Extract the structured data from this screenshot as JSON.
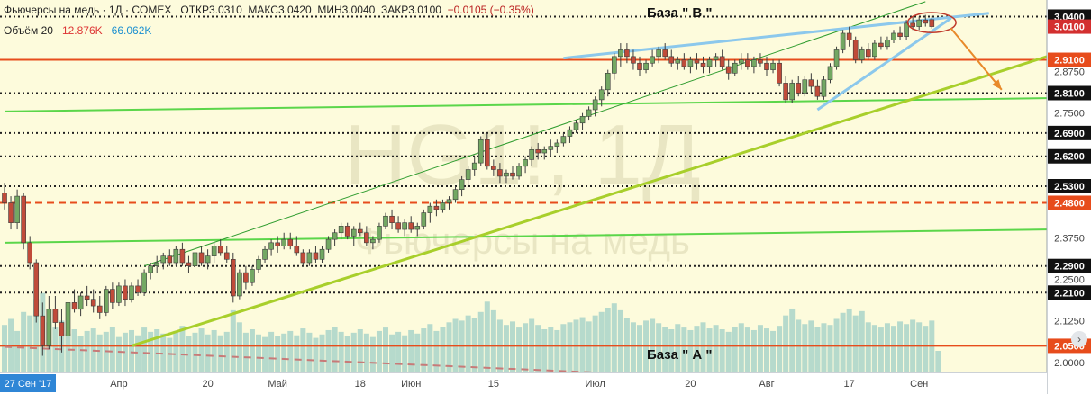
{
  "header": {
    "title": "Фьючерсы на медь · 1Д · COMEX",
    "open": "ОТКР3.0310",
    "high": "МАКС3.0420",
    "low": "МИН3.0040",
    "close": "ЗАКР3.0100",
    "change": "−0.0105 (−0.35%)"
  },
  "volume": {
    "label": "Объём 20",
    "value1": "12.876K",
    "value2": "66.062K"
  },
  "watermark": {
    "symbol": "HG1!, 1Д",
    "name": "Фьючерсы на медь"
  },
  "annotations": {
    "base_b": "База \" В \"",
    "base_a": "База \" А \""
  },
  "colors": {
    "background": "#fdfbdc",
    "up_candle": "#73a863",
    "down_candle": "#c04b3a",
    "volume": "#a9d3c9",
    "level_red": "#e74c1c",
    "trend_green": "#5bd64a",
    "trend_lime": "#a8cf2b",
    "trend_blue": "#8cc8ec",
    "dotted": "#222222"
  },
  "chart_data": {
    "type": "candlestick",
    "yaxis": {
      "min": 1.97,
      "max": 3.09,
      "ticks": [
        "3.0400",
        "3.0100",
        "2.9100",
        "2.8750",
        "2.8100",
        "2.7500",
        "2.6900",
        "2.6200",
        "2.5300",
        "2.4800",
        "2.3750",
        "2.2900",
        "2.2500",
        "2.2100",
        "2.1250",
        "2.0500",
        "2.0000"
      ],
      "highlighted": [
        "3.0400",
        "3.0100",
        "2.9100",
        "2.8100",
        "2.6900",
        "2.6200",
        "2.5300",
        "2.4800",
        "2.2900",
        "2.2100",
        "2.0500"
      ]
    },
    "xaxis": {
      "labels": [
        "27 Сен '17",
        "Апр",
        "20",
        "Май",
        "18",
        "Июн",
        "15",
        "Июл",
        "20",
        "Авг",
        "17",
        "Сен"
      ],
      "highlighted_label": "27 Сен '17"
    },
    "levels": [
      {
        "price": 3.04,
        "style": "dotted",
        "color": "#222222"
      },
      {
        "price": 2.91,
        "style": "solid",
        "color": "#e74c1c"
      },
      {
        "price": 2.81,
        "style": "dotted",
        "color": "#222222"
      },
      {
        "price": 2.69,
        "style": "dotted",
        "color": "#222222"
      },
      {
        "price": 2.62,
        "style": "dotted",
        "color": "#222222"
      },
      {
        "price": 2.53,
        "style": "dotted",
        "color": "#222222"
      },
      {
        "price": 2.48,
        "style": "dashed",
        "color": "#e74c1c"
      },
      {
        "price": 2.29,
        "style": "dotted",
        "color": "#222222"
      },
      {
        "price": 2.21,
        "style": "dotted",
        "color": "#222222"
      },
      {
        "price": 2.05,
        "style": "solid",
        "color": "#e74c1c"
      }
    ],
    "trendlines": [
      {
        "points": [
          [
            0,
            2.755
          ],
          [
            165,
            2.795
          ]
        ],
        "color": "#5bd64a",
        "width": 2
      },
      {
        "points": [
          [
            0,
            2.36
          ],
          [
            165,
            2.4
          ]
        ],
        "color": "#5bd64a",
        "width": 2
      },
      {
        "points": [
          [
            20,
            2.05
          ],
          [
            165,
            2.925
          ]
        ],
        "color": "#a8cf2b",
        "width": 3
      },
      {
        "points": [
          [
            22,
            2.29
          ],
          [
            145,
            3.085
          ]
        ],
        "color": "#2e9c2e",
        "width": 1
      },
      {
        "points": [
          [
            88,
            2.915
          ],
          [
            155,
            3.05
          ]
        ],
        "color": "#8cc8ec",
        "width": 3
      },
      {
        "points": [
          [
            128,
            2.76
          ],
          [
            149,
            3.035
          ]
        ],
        "color": "#8cc8ec",
        "width": 3
      },
      {
        "points": [
          [
            0,
            2.047
          ],
          [
            93,
            1.97
          ]
        ],
        "color": "#c87a78",
        "width": 2,
        "dash": true
      }
    ],
    "arrow": {
      "from": [
        149,
        3.005
      ],
      "to": [
        157,
        2.82
      ],
      "color": "#e88a2a"
    },
    "highlight_ellipse": {
      "center": [
        146,
        3.022
      ],
      "rx": 3.8,
      "ry": 0.03,
      "color": "#c0392b"
    },
    "candles": [
      {
        "o": 2.51,
        "h": 2.54,
        "l": 2.46,
        "c": 2.48
      },
      {
        "o": 2.48,
        "h": 2.5,
        "l": 2.4,
        "c": 2.42
      },
      {
        "o": 2.42,
        "h": 2.52,
        "l": 2.4,
        "c": 2.5
      },
      {
        "o": 2.5,
        "h": 2.51,
        "l": 2.34,
        "c": 2.36
      },
      {
        "o": 2.36,
        "h": 2.38,
        "l": 2.28,
        "c": 2.3
      },
      {
        "o": 2.3,
        "h": 2.31,
        "l": 2.12,
        "c": 2.14
      },
      {
        "o": 2.14,
        "h": 2.18,
        "l": 2.02,
        "c": 2.05
      },
      {
        "o": 2.05,
        "h": 2.2,
        "l": 2.04,
        "c": 2.16
      },
      {
        "o": 2.16,
        "h": 2.2,
        "l": 2.1,
        "c": 2.12
      },
      {
        "o": 2.12,
        "h": 2.16,
        "l": 2.03,
        "c": 2.08
      },
      {
        "o": 2.08,
        "h": 2.2,
        "l": 2.06,
        "c": 2.18
      },
      {
        "o": 2.18,
        "h": 2.22,
        "l": 2.15,
        "c": 2.16
      },
      {
        "o": 2.16,
        "h": 2.21,
        "l": 2.14,
        "c": 2.2
      },
      {
        "o": 2.2,
        "h": 2.23,
        "l": 2.17,
        "c": 2.19
      },
      {
        "o": 2.19,
        "h": 2.22,
        "l": 2.15,
        "c": 2.17
      },
      {
        "o": 2.17,
        "h": 2.2,
        "l": 2.13,
        "c": 2.15
      },
      {
        "o": 2.15,
        "h": 2.23,
        "l": 2.14,
        "c": 2.22
      },
      {
        "o": 2.22,
        "h": 2.24,
        "l": 2.16,
        "c": 2.18
      },
      {
        "o": 2.18,
        "h": 2.24,
        "l": 2.17,
        "c": 2.23
      },
      {
        "o": 2.23,
        "h": 2.25,
        "l": 2.17,
        "c": 2.19
      },
      {
        "o": 2.19,
        "h": 2.24,
        "l": 2.18,
        "c": 2.23
      },
      {
        "o": 2.23,
        "h": 2.25,
        "l": 2.2,
        "c": 2.21
      },
      {
        "o": 2.21,
        "h": 2.28,
        "l": 2.2,
        "c": 2.27
      },
      {
        "o": 2.27,
        "h": 2.3,
        "l": 2.25,
        "c": 2.29
      },
      {
        "o": 2.29,
        "h": 2.32,
        "l": 2.27,
        "c": 2.3
      },
      {
        "o": 2.3,
        "h": 2.33,
        "l": 2.28,
        "c": 2.32
      },
      {
        "o": 2.32,
        "h": 2.34,
        "l": 2.29,
        "c": 2.3
      },
      {
        "o": 2.3,
        "h": 2.35,
        "l": 2.29,
        "c": 2.34
      },
      {
        "o": 2.34,
        "h": 2.36,
        "l": 2.29,
        "c": 2.3
      },
      {
        "o": 2.3,
        "h": 2.32,
        "l": 2.27,
        "c": 2.29
      },
      {
        "o": 2.29,
        "h": 2.34,
        "l": 2.28,
        "c": 2.33
      },
      {
        "o": 2.33,
        "h": 2.35,
        "l": 2.29,
        "c": 2.3
      },
      {
        "o": 2.3,
        "h": 2.34,
        "l": 2.28,
        "c": 2.32
      },
      {
        "o": 2.32,
        "h": 2.36,
        "l": 2.3,
        "c": 2.35
      },
      {
        "o": 2.35,
        "h": 2.37,
        "l": 2.32,
        "c": 2.33
      },
      {
        "o": 2.33,
        "h": 2.35,
        "l": 2.3,
        "c": 2.31
      },
      {
        "o": 2.31,
        "h": 2.33,
        "l": 2.18,
        "c": 2.2
      },
      {
        "o": 2.2,
        "h": 2.28,
        "l": 2.19,
        "c": 2.27
      },
      {
        "o": 2.27,
        "h": 2.29,
        "l": 2.22,
        "c": 2.24
      },
      {
        "o": 2.24,
        "h": 2.29,
        "l": 2.23,
        "c": 2.28
      },
      {
        "o": 2.28,
        "h": 2.32,
        "l": 2.27,
        "c": 2.31
      },
      {
        "o": 2.31,
        "h": 2.35,
        "l": 2.3,
        "c": 2.34
      },
      {
        "o": 2.34,
        "h": 2.37,
        "l": 2.32,
        "c": 2.36
      },
      {
        "o": 2.36,
        "h": 2.38,
        "l": 2.33,
        "c": 2.35
      },
      {
        "o": 2.35,
        "h": 2.39,
        "l": 2.34,
        "c": 2.37
      },
      {
        "o": 2.37,
        "h": 2.39,
        "l": 2.34,
        "c": 2.35
      },
      {
        "o": 2.35,
        "h": 2.38,
        "l": 2.32,
        "c": 2.33
      },
      {
        "o": 2.33,
        "h": 2.34,
        "l": 2.29,
        "c": 2.3
      },
      {
        "o": 2.3,
        "h": 2.34,
        "l": 2.29,
        "c": 2.33
      },
      {
        "o": 2.33,
        "h": 2.35,
        "l": 2.3,
        "c": 2.31
      },
      {
        "o": 2.31,
        "h": 2.35,
        "l": 2.3,
        "c": 2.34
      },
      {
        "o": 2.34,
        "h": 2.38,
        "l": 2.33,
        "c": 2.37
      },
      {
        "o": 2.37,
        "h": 2.4,
        "l": 2.35,
        "c": 2.39
      },
      {
        "o": 2.39,
        "h": 2.42,
        "l": 2.37,
        "c": 2.41
      },
      {
        "o": 2.41,
        "h": 2.42,
        "l": 2.37,
        "c": 2.38
      },
      {
        "o": 2.38,
        "h": 2.41,
        "l": 2.35,
        "c": 2.4
      },
      {
        "o": 2.4,
        "h": 2.42,
        "l": 2.38,
        "c": 2.39
      },
      {
        "o": 2.39,
        "h": 2.41,
        "l": 2.35,
        "c": 2.36
      },
      {
        "o": 2.36,
        "h": 2.38,
        "l": 2.34,
        "c": 2.37
      },
      {
        "o": 2.37,
        "h": 2.42,
        "l": 2.36,
        "c": 2.41
      },
      {
        "o": 2.41,
        "h": 2.45,
        "l": 2.4,
        "c": 2.44
      },
      {
        "o": 2.44,
        "h": 2.46,
        "l": 2.4,
        "c": 2.42
      },
      {
        "o": 2.42,
        "h": 2.44,
        "l": 2.39,
        "c": 2.4
      },
      {
        "o": 2.4,
        "h": 2.43,
        "l": 2.38,
        "c": 2.42
      },
      {
        "o": 2.42,
        "h": 2.44,
        "l": 2.39,
        "c": 2.4
      },
      {
        "o": 2.4,
        "h": 2.42,
        "l": 2.38,
        "c": 2.41
      },
      {
        "o": 2.41,
        "h": 2.46,
        "l": 2.4,
        "c": 2.45
      },
      {
        "o": 2.45,
        "h": 2.48,
        "l": 2.42,
        "c": 2.47
      },
      {
        "o": 2.47,
        "h": 2.49,
        "l": 2.44,
        "c": 2.46
      },
      {
        "o": 2.46,
        "h": 2.49,
        "l": 2.45,
        "c": 2.48
      },
      {
        "o": 2.48,
        "h": 2.5,
        "l": 2.46,
        "c": 2.49
      },
      {
        "o": 2.49,
        "h": 2.53,
        "l": 2.48,
        "c": 2.52
      },
      {
        "o": 2.52,
        "h": 2.56,
        "l": 2.5,
        "c": 2.55
      },
      {
        "o": 2.55,
        "h": 2.59,
        "l": 2.53,
        "c": 2.58
      },
      {
        "o": 2.58,
        "h": 2.62,
        "l": 2.56,
        "c": 2.6
      },
      {
        "o": 2.6,
        "h": 2.68,
        "l": 2.59,
        "c": 2.67
      },
      {
        "o": 2.67,
        "h": 2.69,
        "l": 2.58,
        "c": 2.59
      },
      {
        "o": 2.59,
        "h": 2.61,
        "l": 2.56,
        "c": 2.58
      },
      {
        "o": 2.58,
        "h": 2.6,
        "l": 2.54,
        "c": 2.56
      },
      {
        "o": 2.56,
        "h": 2.58,
        "l": 2.54,
        "c": 2.57
      },
      {
        "o": 2.57,
        "h": 2.59,
        "l": 2.55,
        "c": 2.56
      },
      {
        "o": 2.56,
        "h": 2.6,
        "l": 2.55,
        "c": 2.59
      },
      {
        "o": 2.59,
        "h": 2.62,
        "l": 2.57,
        "c": 2.61
      },
      {
        "o": 2.61,
        "h": 2.65,
        "l": 2.59,
        "c": 2.64
      },
      {
        "o": 2.64,
        "h": 2.66,
        "l": 2.61,
        "c": 2.63
      },
      {
        "o": 2.63,
        "h": 2.65,
        "l": 2.61,
        "c": 2.64
      },
      {
        "o": 2.64,
        "h": 2.67,
        "l": 2.62,
        "c": 2.65
      },
      {
        "o": 2.65,
        "h": 2.67,
        "l": 2.63,
        "c": 2.66
      },
      {
        "o": 2.66,
        "h": 2.69,
        "l": 2.65,
        "c": 2.68
      },
      {
        "o": 2.68,
        "h": 2.71,
        "l": 2.66,
        "c": 2.7
      },
      {
        "o": 2.7,
        "h": 2.73,
        "l": 2.69,
        "c": 2.72
      },
      {
        "o": 2.72,
        "h": 2.75,
        "l": 2.7,
        "c": 2.74
      },
      {
        "o": 2.74,
        "h": 2.77,
        "l": 2.73,
        "c": 2.76
      },
      {
        "o": 2.76,
        "h": 2.8,
        "l": 2.74,
        "c": 2.79
      },
      {
        "o": 2.79,
        "h": 2.83,
        "l": 2.77,
        "c": 2.82
      },
      {
        "o": 2.82,
        "h": 2.88,
        "l": 2.8,
        "c": 2.87
      },
      {
        "o": 2.87,
        "h": 2.93,
        "l": 2.85,
        "c": 2.92
      },
      {
        "o": 2.92,
        "h": 2.96,
        "l": 2.89,
        "c": 2.94
      },
      {
        "o": 2.94,
        "h": 2.96,
        "l": 2.9,
        "c": 2.92
      },
      {
        "o": 2.92,
        "h": 2.94,
        "l": 2.88,
        "c": 2.9
      },
      {
        "o": 2.9,
        "h": 2.92,
        "l": 2.86,
        "c": 2.88
      },
      {
        "o": 2.88,
        "h": 2.91,
        "l": 2.87,
        "c": 2.9
      },
      {
        "o": 2.9,
        "h": 2.94,
        "l": 2.89,
        "c": 2.92
      },
      {
        "o": 2.92,
        "h": 2.95,
        "l": 2.9,
        "c": 2.94
      },
      {
        "o": 2.94,
        "h": 2.96,
        "l": 2.91,
        "c": 2.92
      },
      {
        "o": 2.92,
        "h": 2.94,
        "l": 2.89,
        "c": 2.9
      },
      {
        "o": 2.9,
        "h": 2.92,
        "l": 2.88,
        "c": 2.91
      },
      {
        "o": 2.91,
        "h": 2.93,
        "l": 2.88,
        "c": 2.89
      },
      {
        "o": 2.89,
        "h": 2.92,
        "l": 2.87,
        "c": 2.91
      },
      {
        "o": 2.91,
        "h": 2.93,
        "l": 2.88,
        "c": 2.9
      },
      {
        "o": 2.9,
        "h": 2.92,
        "l": 2.87,
        "c": 2.89
      },
      {
        "o": 2.89,
        "h": 2.92,
        "l": 2.87,
        "c": 2.91
      },
      {
        "o": 2.91,
        "h": 2.93,
        "l": 2.89,
        "c": 2.92
      },
      {
        "o": 2.92,
        "h": 2.94,
        "l": 2.88,
        "c": 2.89
      },
      {
        "o": 2.89,
        "h": 2.91,
        "l": 2.85,
        "c": 2.87
      },
      {
        "o": 2.87,
        "h": 2.91,
        "l": 2.86,
        "c": 2.9
      },
      {
        "o": 2.9,
        "h": 2.93,
        "l": 2.88,
        "c": 2.91
      },
      {
        "o": 2.91,
        "h": 2.93,
        "l": 2.88,
        "c": 2.89
      },
      {
        "o": 2.89,
        "h": 2.92,
        "l": 2.87,
        "c": 2.91
      },
      {
        "o": 2.91,
        "h": 2.93,
        "l": 2.89,
        "c": 2.9
      },
      {
        "o": 2.9,
        "h": 2.92,
        "l": 2.86,
        "c": 2.88
      },
      {
        "o": 2.88,
        "h": 2.91,
        "l": 2.87,
        "c": 2.9
      },
      {
        "o": 2.9,
        "h": 2.91,
        "l": 2.83,
        "c": 2.84
      },
      {
        "o": 2.84,
        "h": 2.86,
        "l": 2.78,
        "c": 2.79
      },
      {
        "o": 2.79,
        "h": 2.85,
        "l": 2.78,
        "c": 2.84
      },
      {
        "o": 2.84,
        "h": 2.86,
        "l": 2.8,
        "c": 2.81
      },
      {
        "o": 2.81,
        "h": 2.86,
        "l": 2.8,
        "c": 2.85
      },
      {
        "o": 2.85,
        "h": 2.87,
        "l": 2.81,
        "c": 2.83
      },
      {
        "o": 2.83,
        "h": 2.85,
        "l": 2.79,
        "c": 2.8
      },
      {
        "o": 2.8,
        "h": 2.86,
        "l": 2.79,
        "c": 2.85
      },
      {
        "o": 2.85,
        "h": 2.9,
        "l": 2.84,
        "c": 2.89
      },
      {
        "o": 2.89,
        "h": 2.95,
        "l": 2.88,
        "c": 2.94
      },
      {
        "o": 2.94,
        "h": 3.0,
        "l": 2.93,
        "c": 2.99
      },
      {
        "o": 2.99,
        "h": 3.01,
        "l": 2.95,
        "c": 2.97
      },
      {
        "o": 2.97,
        "h": 2.98,
        "l": 2.9,
        "c": 2.91
      },
      {
        "o": 2.91,
        "h": 2.95,
        "l": 2.9,
        "c": 2.94
      },
      {
        "o": 2.94,
        "h": 2.96,
        "l": 2.91,
        "c": 2.92
      },
      {
        "o": 2.92,
        "h": 2.97,
        "l": 2.91,
        "c": 2.96
      },
      {
        "o": 2.96,
        "h": 2.98,
        "l": 2.94,
        "c": 2.95
      },
      {
        "o": 2.95,
        "h": 2.98,
        "l": 2.94,
        "c": 2.97
      },
      {
        "o": 2.97,
        "h": 3.0,
        "l": 2.96,
        "c": 2.99
      },
      {
        "o": 2.99,
        "h": 3.01,
        "l": 2.97,
        "c": 2.98
      },
      {
        "o": 2.98,
        "h": 3.03,
        "l": 2.97,
        "c": 3.02
      },
      {
        "o": 3.02,
        "h": 3.04,
        "l": 3.0,
        "c": 3.01
      },
      {
        "o": 3.01,
        "h": 3.04,
        "l": 3.0,
        "c": 3.03
      },
      {
        "o": 3.03,
        "h": 3.045,
        "l": 3.01,
        "c": 3.02
      },
      {
        "o": 3.031,
        "h": 3.042,
        "l": 3.004,
        "c": 3.01
      }
    ],
    "volumes": [
      0.55,
      0.62,
      0.48,
      0.7,
      0.66,
      0.85,
      0.92,
      0.58,
      0.52,
      0.6,
      0.45,
      0.5,
      0.42,
      0.48,
      0.51,
      0.44,
      0.47,
      0.53,
      0.41,
      0.46,
      0.49,
      0.43,
      0.52,
      0.47,
      0.5,
      0.45,
      0.4,
      0.48,
      0.54,
      0.42,
      0.46,
      0.51,
      0.44,
      0.49,
      0.43,
      0.47,
      0.72,
      0.58,
      0.46,
      0.5,
      0.44,
      0.41,
      0.47,
      0.42,
      0.45,
      0.48,
      0.43,
      0.51,
      0.46,
      0.4,
      0.44,
      0.49,
      0.53,
      0.47,
      0.42,
      0.46,
      0.5,
      0.45,
      0.41,
      0.48,
      0.52,
      0.44,
      0.47,
      0.43,
      0.49,
      0.45,
      0.51,
      0.56,
      0.48,
      0.53,
      0.58,
      0.62,
      0.6,
      0.66,
      0.63,
      0.7,
      0.82,
      0.72,
      0.61,
      0.55,
      0.59,
      0.52,
      0.57,
      0.62,
      0.55,
      0.5,
      0.53,
      0.49,
      0.56,
      0.58,
      0.61,
      0.64,
      0.59,
      0.66,
      0.7,
      0.75,
      0.8,
      0.72,
      0.63,
      0.58,
      0.55,
      0.6,
      0.62,
      0.57,
      0.53,
      0.5,
      0.56,
      0.52,
      0.49,
      0.54,
      0.58,
      0.51,
      0.55,
      0.5,
      0.47,
      0.53,
      0.57,
      0.52,
      0.49,
      0.55,
      0.51,
      0.48,
      0.54,
      0.66,
      0.74,
      0.61,
      0.56,
      0.6,
      0.53,
      0.57,
      0.55,
      0.62,
      0.69,
      0.74,
      0.66,
      0.71,
      0.58,
      0.55,
      0.52,
      0.57,
      0.54,
      0.59,
      0.56,
      0.61,
      0.58,
      0.54,
      0.6,
      0.25
    ]
  }
}
